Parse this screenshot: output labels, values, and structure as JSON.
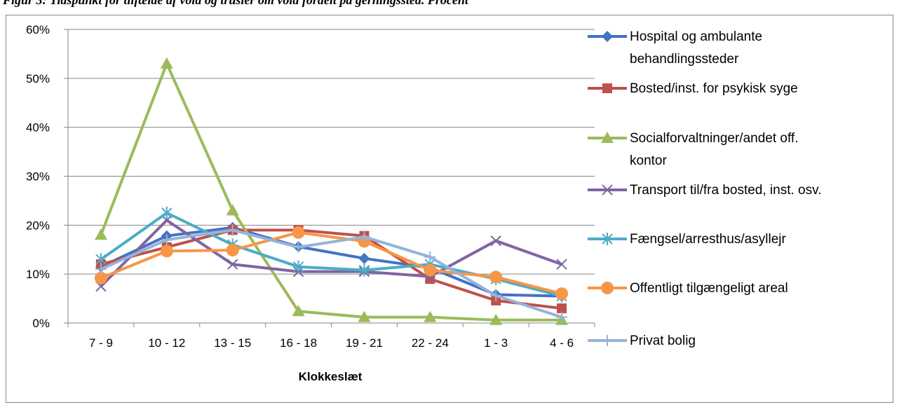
{
  "caption": "Figur 3: Tidspunkt for tilfælde af vold og trusler om vold fordelt på gerningssted. Procent",
  "chart_data": {
    "type": "line",
    "xlabel": "Klokkeslæt",
    "ylabel": "",
    "categories": [
      "7 - 9",
      "10 - 12",
      "13 - 15",
      "16 - 18",
      "19 - 21",
      "22 - 24",
      "1 - 3",
      "4 - 6"
    ],
    "ylim": [
      0,
      60
    ],
    "yticks": [
      0,
      10,
      20,
      30,
      40,
      50,
      60
    ],
    "ytick_labels": [
      "0%",
      "10%",
      "20%",
      "30%",
      "40%",
      "50%",
      "60%"
    ],
    "grid": true,
    "legend_position": "right",
    "series": [
      {
        "name": "Hospital og ambulante behandlingssteder",
        "name_lines": [
          "Hospital og ambulante",
          "behandlingssteder"
        ],
        "color": "#4472C4",
        "marker": "diamond",
        "values": [
          11.5,
          17.8,
          19.5,
          15.6,
          13.2,
          11.3,
          5.8,
          5.5
        ]
      },
      {
        "name": "Bosted/inst. for psykisk syge",
        "name_lines": [
          "Bosted/inst. for psykisk syge"
        ],
        "color": "#C0504D",
        "marker": "square",
        "values": [
          12.0,
          15.5,
          19.0,
          19.0,
          17.8,
          9.0,
          4.6,
          3.0
        ]
      },
      {
        "name": "Socialforvaltninger/andet off. kontor",
        "name_lines": [
          "Socialforvaltninger/andet off.",
          "kontor"
        ],
        "color": "#9BBB59",
        "marker": "triangle",
        "values": [
          18.0,
          53.0,
          23.0,
          2.4,
          1.2,
          1.2,
          0.6,
          0.6
        ]
      },
      {
        "name": "Transport til/fra bosted, inst. osv.",
        "name_lines": [
          "Transport til/fra bosted, inst. osv."
        ],
        "color": "#8064A2",
        "marker": "x",
        "values": [
          7.5,
          21.0,
          12.0,
          10.5,
          10.5,
          9.5,
          16.8,
          12.0
        ]
      },
      {
        "name": "Fængsel/arresthus/asyllejr",
        "name_lines": [
          "Fængsel/arresthus/asyllejr"
        ],
        "color": "#4BACC6",
        "marker": "star",
        "values": [
          13.0,
          22.5,
          16.0,
          11.5,
          10.8,
          12.0,
          9.0,
          5.5
        ]
      },
      {
        "name": "Offentligt tilgængeligt areal",
        "name_lines": [
          "Offentligt tilgængeligt areal"
        ],
        "color": "#F79646",
        "marker": "circle",
        "values": [
          9.2,
          14.7,
          14.9,
          18.5,
          16.7,
          10.8,
          9.4,
          6.0
        ]
      },
      {
        "name": "Privat bolig",
        "name_lines": [
          "Privat bolig"
        ],
        "color": "#95B3D7",
        "marker": "plus",
        "values": [
          11.0,
          17.0,
          19.0,
          15.5,
          17.6,
          13.5,
          5.6,
          1.2
        ]
      }
    ]
  }
}
